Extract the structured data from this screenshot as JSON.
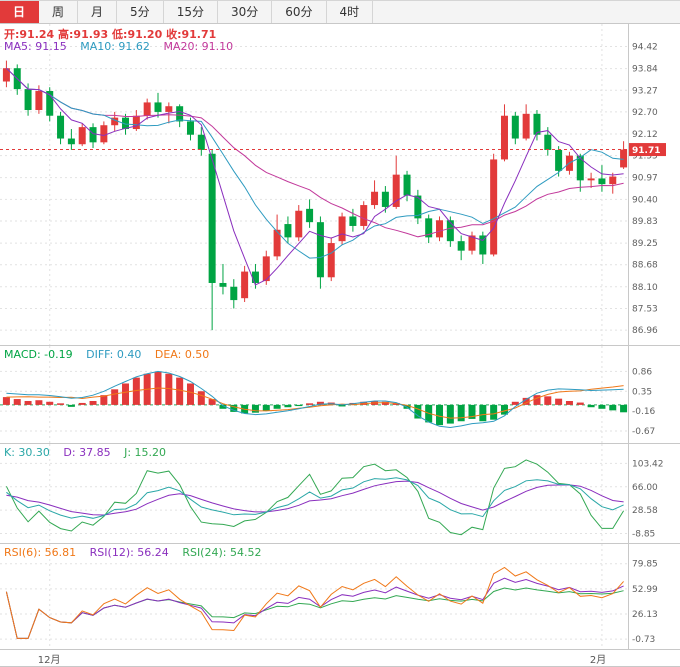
{
  "tabs": {
    "items": [
      {
        "label": "日",
        "active": true
      },
      {
        "label": "周",
        "active": false
      },
      {
        "label": "月",
        "active": false
      },
      {
        "label": "5分",
        "active": false
      },
      {
        "label": "15分",
        "active": false
      },
      {
        "label": "30分",
        "active": false
      },
      {
        "label": "60分",
        "active": false
      },
      {
        "label": "4时",
        "active": false
      }
    ]
  },
  "main": {
    "ohlc_text": "开:91.24 高:91.93 低:91.20 收:91.71",
    "ma_legend": [
      "MA5: 91.15",
      "MA10: 91.62",
      "MA20: 91.10"
    ],
    "axis_labels": [
      "94.42",
      "93.84",
      "93.27",
      "92.70",
      "92.12",
      "91.55",
      "90.97",
      "90.40",
      "89.83",
      "89.25",
      "88.68",
      "88.10",
      "87.53",
      "86.96"
    ],
    "current_price": "91.71"
  },
  "macd": {
    "legend": [
      "MACD: -0.19",
      "DIFF: 0.40",
      "DEA: 0.50"
    ],
    "axis_labels": [
      "0.86",
      "0.35",
      "-0.16",
      "-0.67"
    ]
  },
  "kdj": {
    "legend": [
      "K: 30.30",
      "D: 37.85",
      "J: 15.20"
    ],
    "axis_labels": [
      "103.42",
      "66.00",
      "28.58",
      "-8.85"
    ]
  },
  "rsi": {
    "legend": [
      "RSI(6): 56.81",
      "RSI(12): 56.24",
      "RSI(24): 54.52"
    ],
    "axis_labels": [
      "79.85",
      "52.99",
      "26.13",
      "-0.73"
    ]
  },
  "xaxis": {
    "labels": [
      {
        "index": 4,
        "text": "12月"
      },
      {
        "index": 55,
        "text": "2月"
      }
    ]
  },
  "colors": {
    "up": "#e23a3a",
    "down": "#00a443",
    "ma5": "#8a2fbe",
    "ma10": "#2e9bc0",
    "ma20": "#c2399b",
    "diff": "#2e9bc0",
    "dea": "#f07818",
    "zero": "#2faa60",
    "k": "#2aa7a7",
    "d": "#8a2fbe",
    "j": "#33a853",
    "rsi6": "#f07818",
    "rsi12": "#8a2fbe",
    "rsi24": "#33a853",
    "grid": "#e2e2e2",
    "axis_text": "#606060",
    "price_line": "#e23a3a"
  },
  "chart_data": {
    "type": "candlestick",
    "panels": [
      "price+MA(5,10,20)",
      "MACD",
      "KDJ",
      "RSI"
    ],
    "price_axis_range": [
      86.96,
      94.42
    ],
    "x_axis_labels": [
      "12月",
      "2月"
    ],
    "last_bar_ohlc": {
      "open": 91.24,
      "high": 91.93,
      "low": 91.2,
      "close": 91.71
    },
    "indicator_params": {
      "ma": [
        5,
        10,
        20
      ],
      "kdj": [
        9,
        3,
        3
      ],
      "rsi": [
        6,
        12,
        24
      ]
    },
    "legend_values": {
      "ma5": 91.15,
      "ma10": 91.62,
      "ma20": 91.1,
      "macd": -0.19,
      "diff": 0.4,
      "dea": 0.5,
      "k": 30.3,
      "d": 37.85,
      "j": 15.2,
      "rsi6": 56.81,
      "rsi12": 56.24,
      "rsi24": 54.52
    },
    "candles": [
      [
        93.5,
        94.05,
        93.35,
        93.85
      ],
      [
        93.85,
        93.95,
        93.15,
        93.3
      ],
      [
        93.3,
        93.45,
        92.6,
        92.75
      ],
      [
        92.75,
        93.4,
        92.65,
        93.25
      ],
      [
        93.25,
        93.35,
        92.45,
        92.6
      ],
      [
        92.6,
        92.7,
        91.85,
        92.0
      ],
      [
        92.0,
        92.25,
        91.7,
        91.85
      ],
      [
        91.85,
        92.4,
        91.8,
        92.3
      ],
      [
        92.3,
        92.4,
        91.75,
        91.9
      ],
      [
        91.9,
        92.45,
        91.85,
        92.35
      ],
      [
        92.35,
        92.7,
        92.2,
        92.55
      ],
      [
        92.55,
        92.65,
        92.1,
        92.25
      ],
      [
        92.25,
        92.75,
        92.2,
        92.6
      ],
      [
        92.6,
        93.05,
        92.5,
        92.95
      ],
      [
        92.95,
        93.2,
        92.55,
        92.7
      ],
      [
        92.7,
        92.95,
        92.4,
        92.85
      ],
      [
        92.85,
        92.9,
        92.3,
        92.45
      ],
      [
        92.45,
        92.55,
        91.95,
        92.1
      ],
      [
        92.1,
        92.3,
        91.55,
        91.7
      ],
      [
        91.6,
        91.7,
        86.96,
        88.2
      ],
      [
        88.2,
        88.7,
        87.9,
        88.1
      ],
      [
        88.1,
        88.3,
        87.53,
        87.75
      ],
      [
        87.8,
        88.65,
        87.7,
        88.5
      ],
      [
        88.5,
        88.7,
        88.05,
        88.2
      ],
      [
        88.25,
        89.05,
        88.15,
        88.9
      ],
      [
        88.9,
        90.0,
        88.8,
        89.6
      ],
      [
        89.75,
        89.95,
        89.25,
        89.4
      ],
      [
        89.4,
        90.25,
        89.3,
        90.1
      ],
      [
        90.15,
        90.4,
        89.65,
        89.8
      ],
      [
        89.8,
        89.95,
        88.05,
        88.35
      ],
      [
        88.35,
        89.4,
        88.25,
        89.25
      ],
      [
        89.3,
        90.05,
        89.2,
        89.95
      ],
      [
        89.95,
        90.15,
        89.55,
        89.7
      ],
      [
        89.7,
        90.35,
        89.6,
        90.25
      ],
      [
        90.25,
        90.9,
        90.15,
        90.6
      ],
      [
        90.6,
        90.75,
        90.05,
        90.2
      ],
      [
        90.2,
        91.55,
        90.15,
        91.05
      ],
      [
        91.05,
        91.15,
        90.35,
        90.5
      ],
      [
        90.5,
        90.65,
        89.75,
        89.9
      ],
      [
        89.9,
        90.0,
        89.25,
        89.4
      ],
      [
        89.4,
        89.95,
        89.3,
        89.85
      ],
      [
        89.85,
        89.95,
        89.15,
        89.3
      ],
      [
        89.3,
        89.45,
        88.8,
        89.05
      ],
      [
        89.05,
        89.55,
        88.95,
        89.45
      ],
      [
        89.45,
        89.55,
        88.7,
        88.95
      ],
      [
        88.95,
        91.6,
        88.9,
        91.45
      ],
      [
        91.45,
        92.9,
        91.4,
        92.6
      ],
      [
        92.6,
        92.7,
        91.85,
        92.0
      ],
      [
        92.0,
        92.9,
        91.95,
        92.65
      ],
      [
        92.65,
        92.75,
        91.95,
        92.1
      ],
      [
        92.1,
        92.3,
        91.55,
        91.7
      ],
      [
        91.7,
        91.8,
        91.0,
        91.15
      ],
      [
        91.15,
        91.65,
        91.05,
        91.55
      ],
      [
        91.55,
        91.6,
        90.6,
        90.9
      ],
      [
        90.9,
        91.1,
        90.7,
        90.95
      ],
      [
        90.95,
        91.3,
        90.6,
        90.8
      ],
      [
        90.8,
        91.1,
        90.55,
        91.0
      ],
      [
        91.24,
        91.93,
        91.2,
        91.71
      ]
    ],
    "macd_series": {
      "hist": [
        0.2,
        0.15,
        0.1,
        0.12,
        0.08,
        0.04,
        -0.05,
        0.05,
        0.1,
        0.25,
        0.4,
        0.55,
        0.7,
        0.8,
        0.85,
        0.8,
        0.7,
        0.55,
        0.35,
        0.15,
        -0.1,
        -0.18,
        -0.22,
        -0.2,
        -0.15,
        -0.1,
        -0.06,
        -0.03,
        0.04,
        0.08,
        0.06,
        -0.04,
        0.05,
        0.08,
        0.1,
        0.08,
        0.05,
        -0.1,
        -0.35,
        -0.45,
        -0.52,
        -0.48,
        -0.42,
        -0.36,
        -0.42,
        -0.38,
        -0.25,
        0.08,
        0.18,
        0.25,
        0.22,
        0.16,
        0.1,
        0.06,
        -0.06,
        -0.1,
        -0.14,
        -0.19
      ],
      "diff": [
        0.3,
        0.28,
        0.26,
        0.26,
        0.24,
        0.21,
        0.17,
        0.19,
        0.25,
        0.35,
        0.48,
        0.6,
        0.72,
        0.8,
        0.86,
        0.82,
        0.73,
        0.6,
        0.42,
        0.22,
        -0.02,
        -0.14,
        -0.22,
        -0.25,
        -0.23,
        -0.19,
        -0.15,
        -0.1,
        -0.04,
        0.02,
        0.03,
        0.0,
        0.03,
        0.07,
        0.1,
        0.1,
        0.06,
        -0.06,
        -0.28,
        -0.44,
        -0.55,
        -0.58,
        -0.54,
        -0.48,
        -0.46,
        -0.42,
        -0.28,
        -0.04,
        0.14,
        0.3,
        0.38,
        0.41,
        0.4,
        0.39,
        0.37,
        0.38,
        0.39,
        0.4
      ],
      "dea_formula": "dea = diff - hist/2"
    }
  }
}
